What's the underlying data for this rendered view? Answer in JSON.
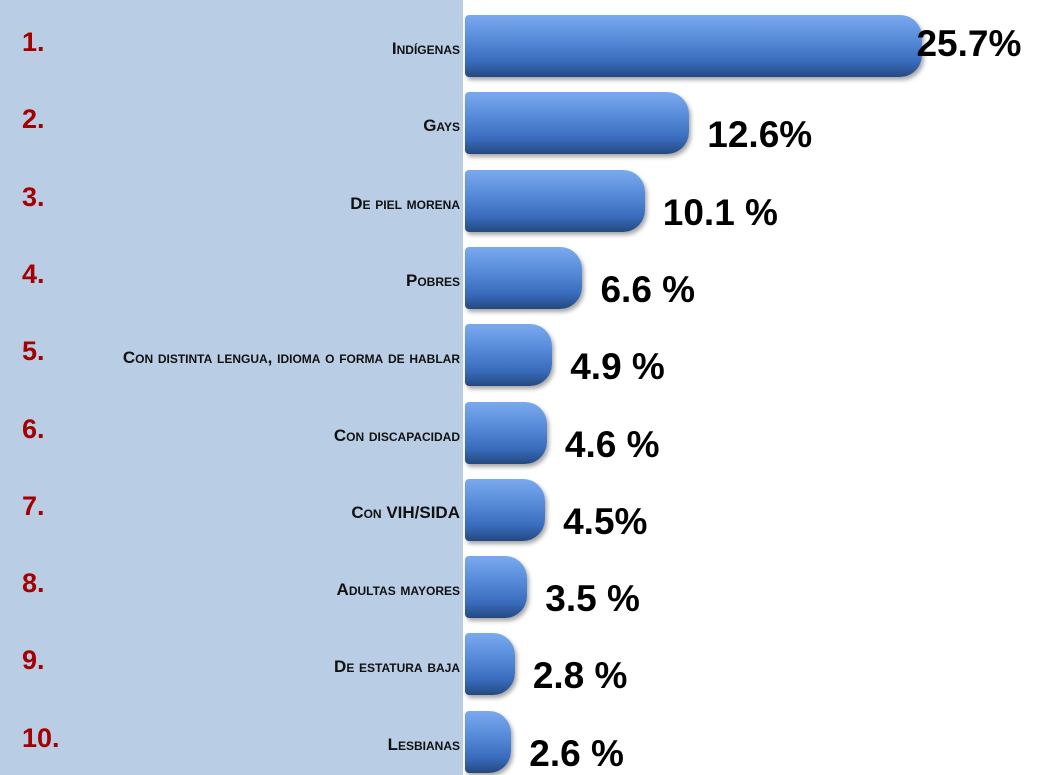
{
  "chart_data": {
    "type": "bar",
    "orientation": "horizontal",
    "ranks": [
      "1.",
      "2.",
      "3.",
      "4.",
      "5.",
      "6.",
      "7.",
      "8.",
      "9.",
      "10."
    ],
    "categories": [
      "Indígenas",
      "Gays",
      "De piel morena",
      "Pobres",
      "Con distinta lengua, idioma o forma de hablar",
      "Con discapacidad",
      "Con VIH/SIDA",
      "Adultas mayores",
      "De estatura baja",
      "Lesbianas"
    ],
    "values": [
      25.7,
      12.6,
      10.1,
      6.6,
      4.9,
      4.6,
      4.5,
      3.5,
      2.8,
      2.6
    ],
    "value_labels": [
      "25.7%",
      "12.6%",
      "10.1 %",
      "6.6 %",
      "4.9 %",
      "4.6 %",
      "4.5%",
      "3.5 %",
      "2.8 %",
      "2.6 %"
    ],
    "color": "#4a7fd0"
  }
}
